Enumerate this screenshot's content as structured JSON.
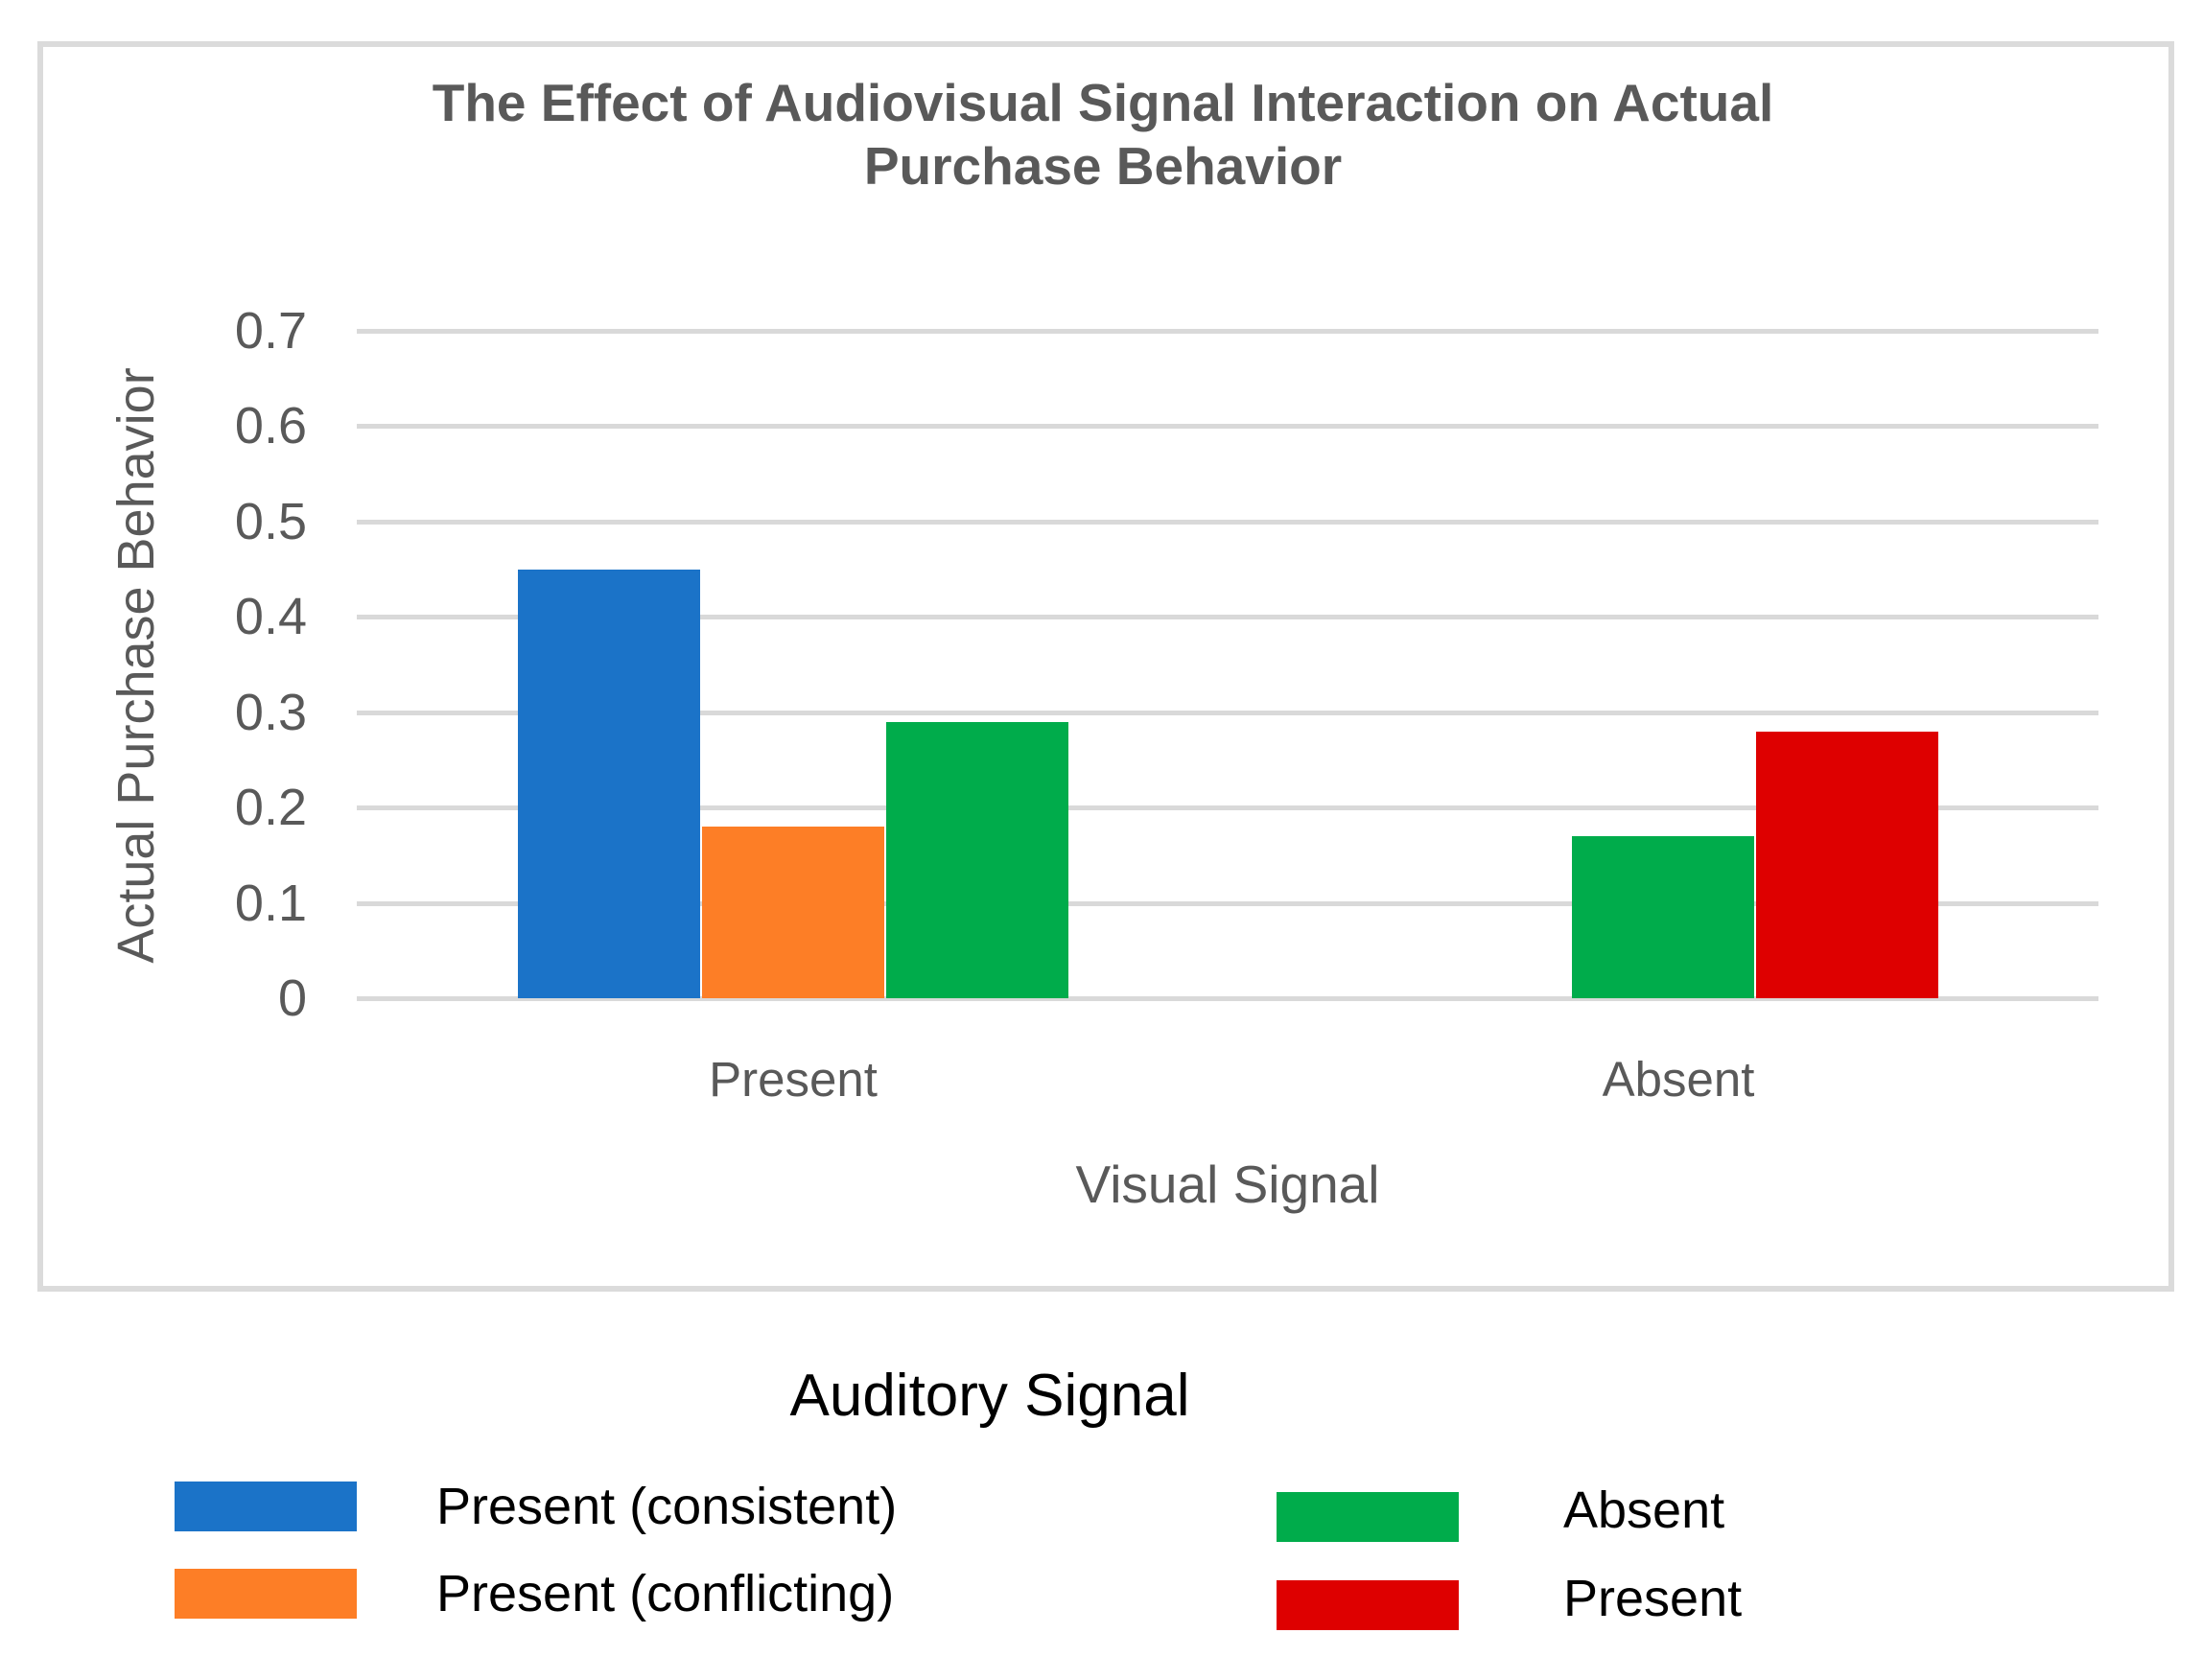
{
  "page": {
    "background": "#FFFFFF"
  },
  "colors": {
    "frame": "#DBDBDB",
    "grid": "#D9D9D9",
    "axis_text": "#595959",
    "title_text": "#595959",
    "legend_text": "#000000"
  },
  "chart_data": {
    "type": "bar",
    "title": "The Effect of Audiovisual Signal Interaction on Actual Purchase Behavior",
    "title_lines": [
      "The Effect of Audiovisual Signal Interaction on Actual",
      "Purchase Behavior"
    ],
    "xlabel": "Visual Signal",
    "ylabel": "Actual Purchase Behavior",
    "categories": [
      "Present",
      "Absent"
    ],
    "series": [
      {
        "name": "Present (consistent)",
        "color": "#1B73C8",
        "values": [
          0.45,
          null
        ]
      },
      {
        "name": "Present (conflicting)",
        "color": "#FD7E26",
        "values": [
          0.18,
          null
        ]
      },
      {
        "name": "Absent",
        "color": "#00AC4B",
        "values": [
          0.29,
          0.17
        ]
      },
      {
        "name": "Present",
        "color": "#DE0000",
        "values": [
          null,
          0.28
        ]
      }
    ],
    "ylim": [
      0,
      0.7
    ],
    "ytick_step": 0.1,
    "yticks": [
      "0.7",
      "0.6",
      "0.5",
      "0.4",
      "0.3",
      "0.2",
      "0.1",
      "0"
    ],
    "grid": "horizontal gridlines on",
    "legend_title": "Auditory Signal",
    "legend_position": "bottom"
  }
}
